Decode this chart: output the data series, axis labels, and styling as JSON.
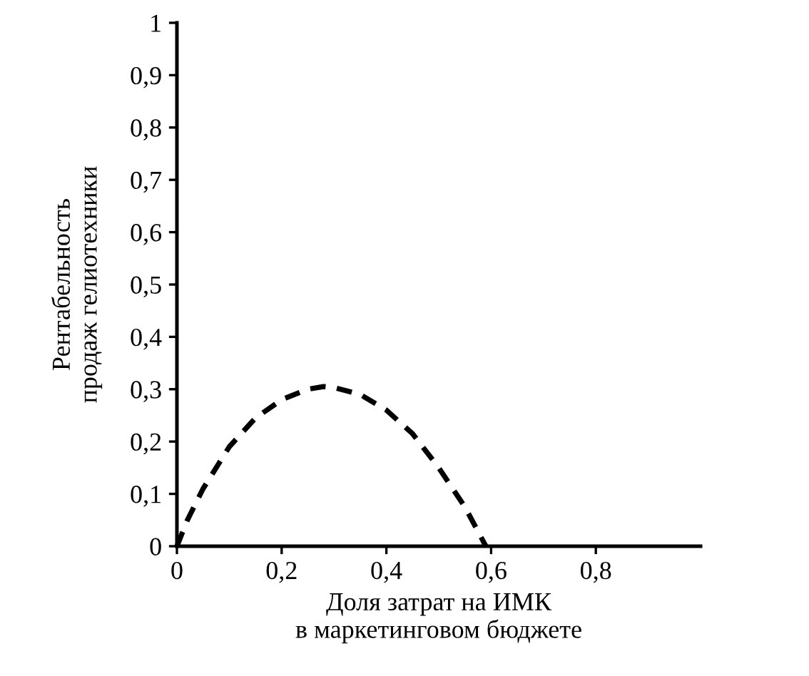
{
  "chart_data": {
    "type": "line",
    "xlabel": "Доля затрат на ИМК\nв маркетинговом бюджете",
    "ylabel": "Рентабельность\nпродаж гелиотехники",
    "series": [
      {
        "color": "#000000",
        "x": [
          0,
          0.02,
          0.05,
          0.1,
          0.15,
          0.2,
          0.25,
          0.28,
          0.3,
          0.35,
          0.4,
          0.45,
          0.5,
          0.55,
          0.59
        ],
        "values": [
          0,
          0.05,
          0.11,
          0.19,
          0.245,
          0.28,
          0.3,
          0.305,
          0.303,
          0.29,
          0.26,
          0.215,
          0.15,
          0.075,
          0
        ]
      }
    ],
    "line_style": "dashed",
    "marker": "none",
    "grid": false,
    "legend": false,
    "xlim": [
      0,
      1
    ],
    "ylim": [
      0,
      1
    ],
    "xticks": [
      {
        "value": 0,
        "label": "0"
      },
      {
        "value": 0.2,
        "label": "0,2"
      },
      {
        "value": 0.4,
        "label": "0,4"
      },
      {
        "value": 0.6,
        "label": "0,6"
      },
      {
        "value": 0.8,
        "label": "0,8"
      }
    ],
    "yticks": [
      {
        "value": 0,
        "label": "0"
      },
      {
        "value": 0.1,
        "label": "0,1"
      },
      {
        "value": 0.2,
        "label": "0,2"
      },
      {
        "value": 0.3,
        "label": "0,3"
      },
      {
        "value": 0.4,
        "label": "0,4"
      },
      {
        "value": 0.5,
        "label": "0,5"
      },
      {
        "value": 0.6,
        "label": "0,6"
      },
      {
        "value": 0.7,
        "label": "0,7"
      },
      {
        "value": 0.8,
        "label": "0,8"
      },
      {
        "value": 0.9,
        "label": "0,9"
      },
      {
        "value": 1,
        "label": "1"
      }
    ]
  }
}
